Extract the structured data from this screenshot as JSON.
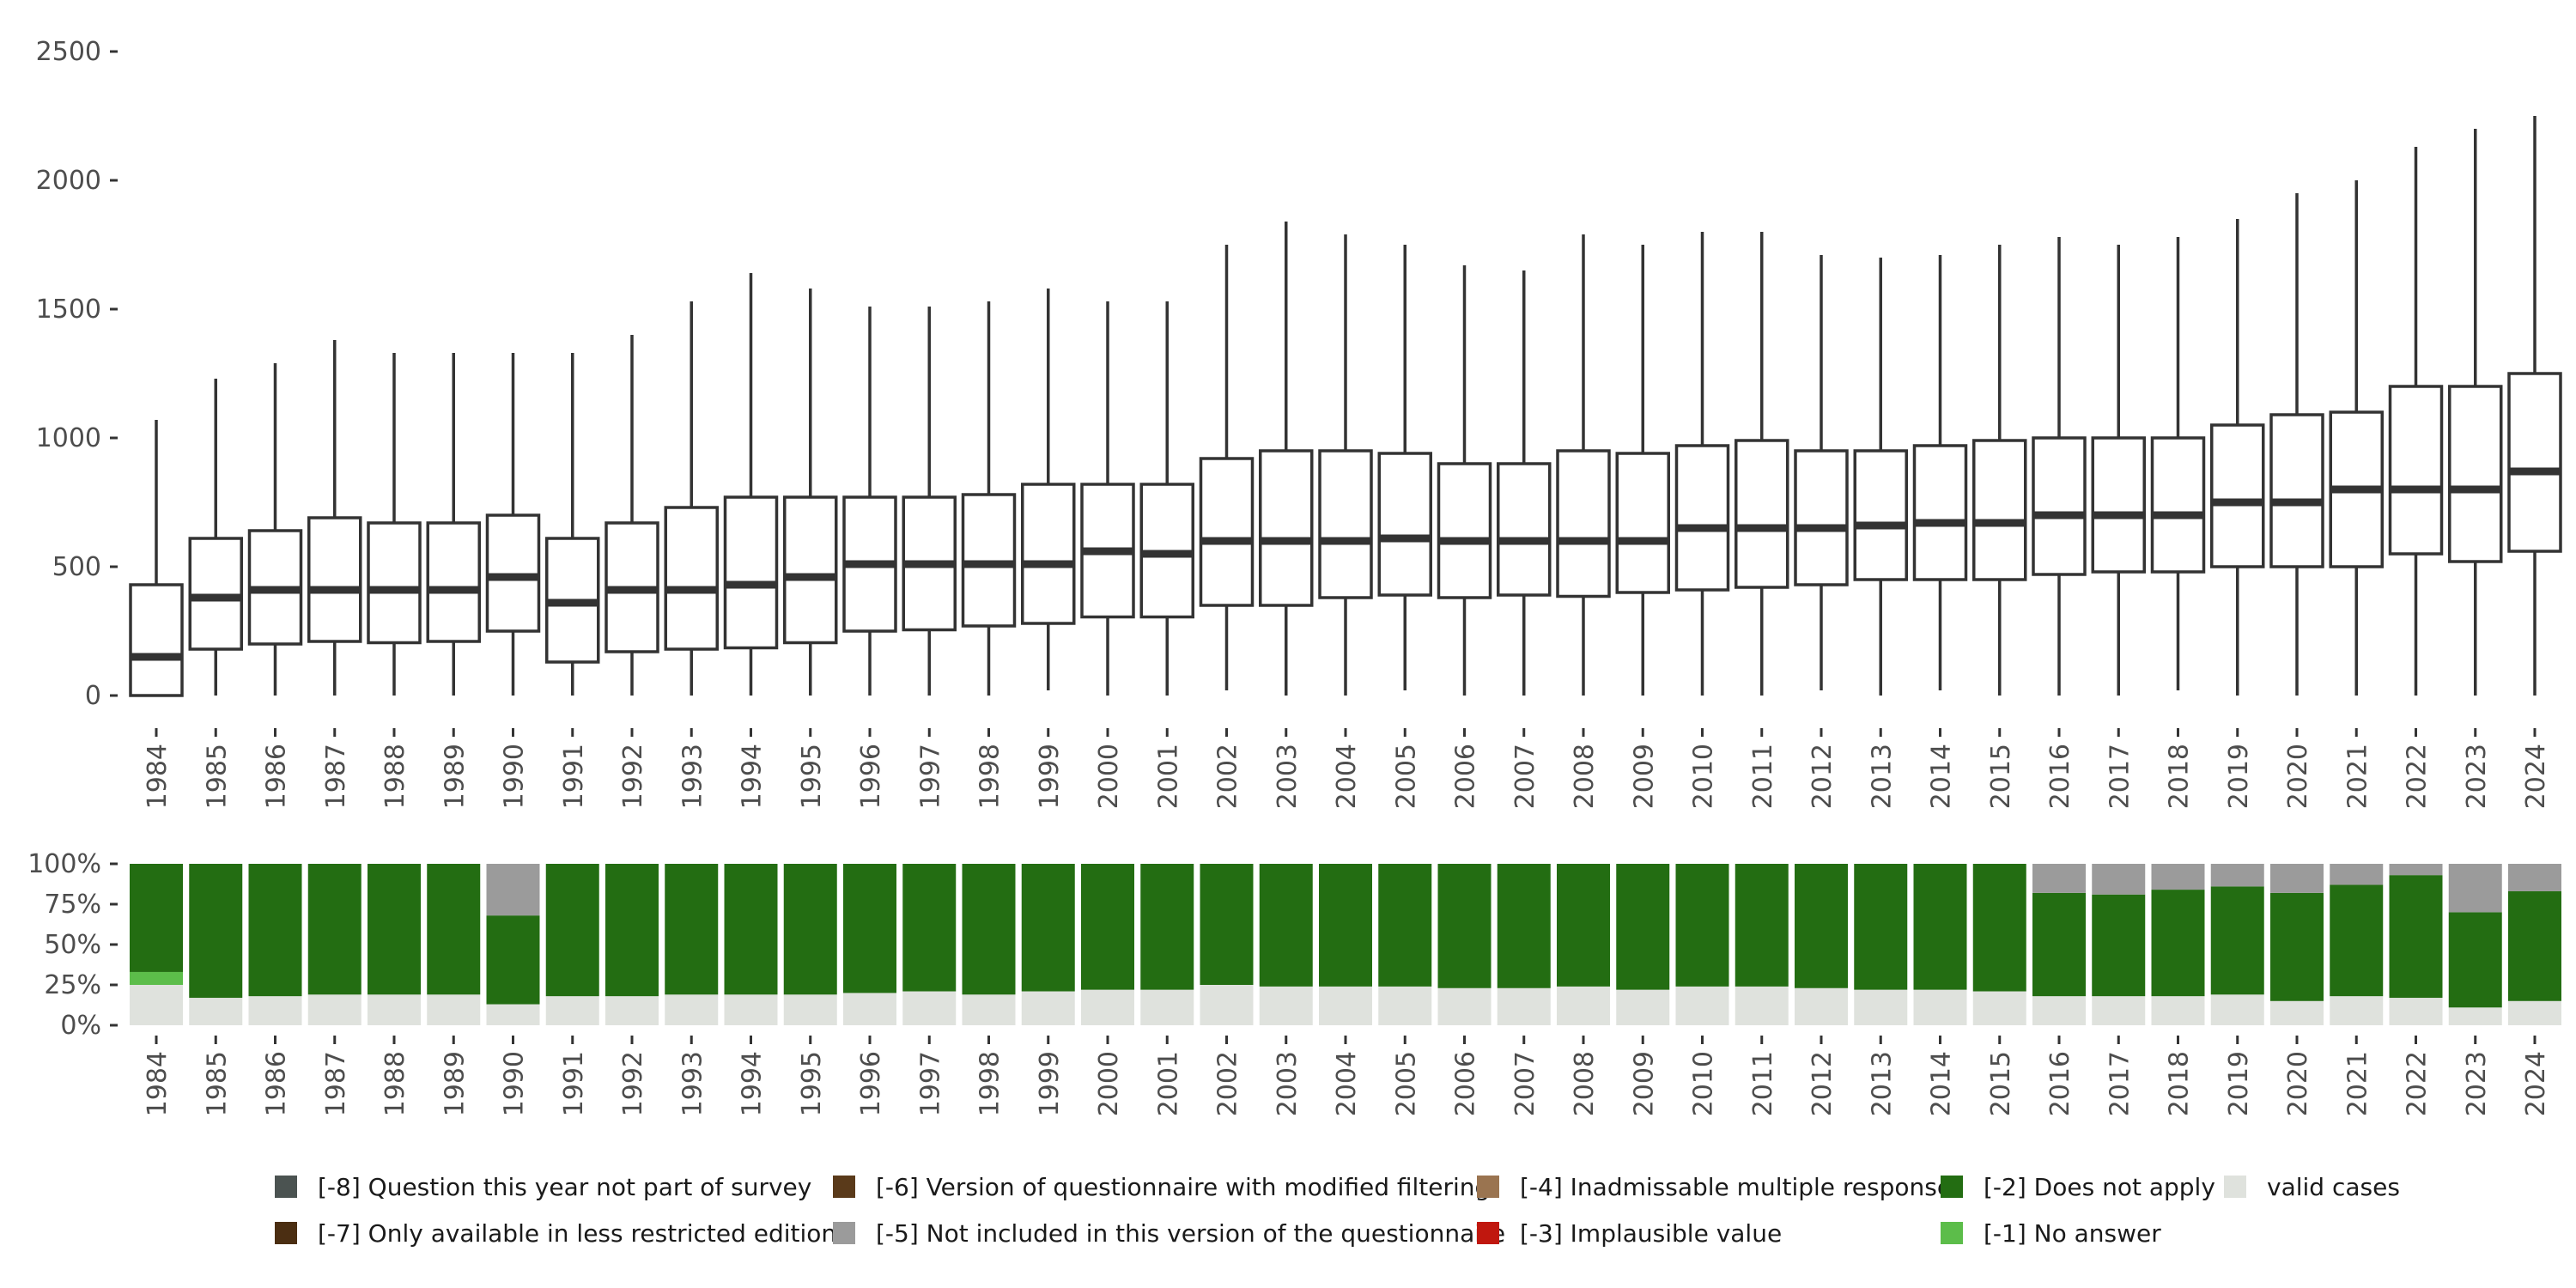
{
  "chart_data": [
    {
      "type": "boxplot",
      "title": "",
      "xlabel": "",
      "ylabel": "",
      "ylim": [
        0,
        2500
      ],
      "yticks": [
        "0",
        "500",
        "1000",
        "1500",
        "2000",
        "2500"
      ],
      "categories": [
        "1984",
        "1985",
        "1986",
        "1987",
        "1988",
        "1989",
        "1990",
        "1991",
        "1992",
        "1993",
        "1994",
        "1995",
        "1996",
        "1997",
        "1998",
        "1999",
        "2000",
        "2001",
        "2002",
        "2003",
        "2004",
        "2005",
        "2006",
        "2007",
        "2008",
        "2009",
        "2010",
        "2011",
        "2012",
        "2013",
        "2014",
        "2015",
        "2016",
        "2017",
        "2018",
        "2019",
        "2020",
        "2021",
        "2022",
        "2023",
        "2024"
      ],
      "boxes": [
        {
          "min": 0,
          "q1": 0,
          "median": 150,
          "q3": 430,
          "max": 1070
        },
        {
          "min": 0,
          "q1": 180,
          "median": 380,
          "q3": 610,
          "max": 1230
        },
        {
          "min": 0,
          "q1": 200,
          "median": 410,
          "q3": 640,
          "max": 1290
        },
        {
          "min": 0,
          "q1": 210,
          "median": 410,
          "q3": 690,
          "max": 1380
        },
        {
          "min": 0,
          "q1": 205,
          "median": 410,
          "q3": 670,
          "max": 1330
        },
        {
          "min": 0,
          "q1": 210,
          "median": 410,
          "q3": 670,
          "max": 1330
        },
        {
          "min": 0,
          "q1": 250,
          "median": 460,
          "q3": 700,
          "max": 1330
        },
        {
          "min": 0,
          "q1": 130,
          "median": 360,
          "q3": 610,
          "max": 1330
        },
        {
          "min": 0,
          "q1": 170,
          "median": 410,
          "q3": 670,
          "max": 1400
        },
        {
          "min": 0,
          "q1": 180,
          "median": 410,
          "q3": 730,
          "max": 1530
        },
        {
          "min": 0,
          "q1": 185,
          "median": 430,
          "q3": 770,
          "max": 1640
        },
        {
          "min": 0,
          "q1": 205,
          "median": 460,
          "q3": 770,
          "max": 1580
        },
        {
          "min": 0,
          "q1": 250,
          "median": 510,
          "q3": 770,
          "max": 1510
        },
        {
          "min": 0,
          "q1": 255,
          "median": 510,
          "q3": 770,
          "max": 1510
        },
        {
          "min": 0,
          "q1": 270,
          "median": 510,
          "q3": 780,
          "max": 1530
        },
        {
          "min": 20,
          "q1": 280,
          "median": 510,
          "q3": 820,
          "max": 1580
        },
        {
          "min": 0,
          "q1": 305,
          "median": 560,
          "q3": 820,
          "max": 1530
        },
        {
          "min": 0,
          "q1": 305,
          "median": 550,
          "q3": 820,
          "max": 1530
        },
        {
          "min": 20,
          "q1": 350,
          "median": 600,
          "q3": 920,
          "max": 1750
        },
        {
          "min": 0,
          "q1": 350,
          "median": 600,
          "q3": 950,
          "max": 1840
        },
        {
          "min": 0,
          "q1": 380,
          "median": 600,
          "q3": 950,
          "max": 1790
        },
        {
          "min": 20,
          "q1": 390,
          "median": 610,
          "q3": 940,
          "max": 1750
        },
        {
          "min": 0,
          "q1": 380,
          "median": 600,
          "q3": 900,
          "max": 1670
        },
        {
          "min": 0,
          "q1": 390,
          "median": 600,
          "q3": 900,
          "max": 1650
        },
        {
          "min": 0,
          "q1": 385,
          "median": 600,
          "q3": 950,
          "max": 1790
        },
        {
          "min": 0,
          "q1": 400,
          "median": 600,
          "q3": 940,
          "max": 1750
        },
        {
          "min": 0,
          "q1": 410,
          "median": 650,
          "q3": 970,
          "max": 1800
        },
        {
          "min": 0,
          "q1": 420,
          "median": 650,
          "q3": 990,
          "max": 1800
        },
        {
          "min": 20,
          "q1": 430,
          "median": 650,
          "q3": 950,
          "max": 1710
        },
        {
          "min": 0,
          "q1": 450,
          "median": 660,
          "q3": 950,
          "max": 1700
        },
        {
          "min": 20,
          "q1": 450,
          "median": 670,
          "q3": 970,
          "max": 1710
        },
        {
          "min": 0,
          "q1": 450,
          "median": 670,
          "q3": 990,
          "max": 1750
        },
        {
          "min": 0,
          "q1": 470,
          "median": 700,
          "q3": 1000,
          "max": 1780
        },
        {
          "min": 0,
          "q1": 480,
          "median": 700,
          "q3": 1000,
          "max": 1750
        },
        {
          "min": 20,
          "q1": 480,
          "median": 700,
          "q3": 1000,
          "max": 1780
        },
        {
          "min": 0,
          "q1": 500,
          "median": 750,
          "q3": 1050,
          "max": 1850
        },
        {
          "min": 0,
          "q1": 500,
          "median": 750,
          "q3": 1090,
          "max": 1950
        },
        {
          "min": 0,
          "q1": 500,
          "median": 800,
          "q3": 1100,
          "max": 2000
        },
        {
          "min": 0,
          "q1": 550,
          "median": 800,
          "q3": 1200,
          "max": 2130
        },
        {
          "min": 0,
          "q1": 520,
          "median": 800,
          "q3": 1200,
          "max": 2200
        },
        {
          "min": 0,
          "q1": 560,
          "median": 870,
          "q3": 1250,
          "max": 2250
        }
      ]
    },
    {
      "type": "stacked-bar",
      "title": "",
      "xlabel": "",
      "ylabel": "",
      "ylim": [
        0,
        100
      ],
      "yticks": [
        "0%",
        "25%",
        "50%",
        "75%",
        "100%"
      ],
      "categories": [
        "1984",
        "1985",
        "1986",
        "1987",
        "1988",
        "1989",
        "1990",
        "1991",
        "1992",
        "1993",
        "1994",
        "1995",
        "1996",
        "1997",
        "1998",
        "1999",
        "2000",
        "2001",
        "2002",
        "2003",
        "2004",
        "2005",
        "2006",
        "2007",
        "2008",
        "2009",
        "2010",
        "2011",
        "2012",
        "2013",
        "2014",
        "2015",
        "2016",
        "2017",
        "2018",
        "2019",
        "2020",
        "2021",
        "2022",
        "2023",
        "2024"
      ],
      "series": [
        {
          "name": "valid cases",
          "color": "#dfe2dd",
          "values": [
            25,
            17,
            18,
            19,
            19,
            19,
            13,
            18,
            18,
            19,
            19,
            19,
            20,
            21,
            19,
            21,
            22,
            22,
            25,
            24,
            24,
            24,
            23,
            23,
            24,
            22,
            24,
            24,
            23,
            22,
            22,
            21,
            18,
            18,
            18,
            19,
            15,
            18,
            17,
            11,
            15
          ]
        },
        {
          "name": "[-1] No answer",
          "color": "#5cbd4a",
          "values": [
            8,
            0,
            0,
            0,
            0,
            0,
            0,
            0,
            0,
            0,
            0,
            0,
            0,
            0,
            0,
            0,
            0,
            0,
            0,
            0,
            0,
            0,
            0,
            0,
            0,
            0,
            0,
            0,
            0,
            0,
            0,
            0,
            0,
            0,
            0,
            0,
            0,
            0,
            0,
            0,
            0
          ]
        },
        {
          "name": "[-2] Does not apply",
          "color": "#236d12",
          "values": [
            67,
            83,
            82,
            81,
            81,
            81,
            55,
            82,
            82,
            81,
            81,
            81,
            80,
            79,
            81,
            79,
            78,
            78,
            75,
            76,
            76,
            76,
            77,
            77,
            76,
            78,
            76,
            76,
            77,
            78,
            78,
            79,
            64,
            63,
            66,
            67,
            67,
            69,
            76,
            59,
            68
          ]
        },
        {
          "name": "[-5] Not included in this version of the questionnaire",
          "color": "#9b9b9b",
          "values": [
            0,
            0,
            0,
            0,
            0,
            0,
            32,
            0,
            0,
            0,
            0,
            0,
            0,
            0,
            0,
            0,
            0,
            0,
            0,
            0,
            0,
            0,
            0,
            0,
            0,
            0,
            0,
            0,
            0,
            0,
            0,
            0,
            18,
            19,
            16,
            14,
            18,
            13,
            7,
            30,
            17
          ]
        }
      ],
      "legend": [
        {
          "label": "[-8] Question this year not part of survey",
          "color": "#4b5351"
        },
        {
          "label": "[-7] Only available in less restricted edition",
          "color": "#4b2e12"
        },
        {
          "label": "[-6] Version of questionnaire with modified filtering",
          "color": "#5a3a1a"
        },
        {
          "label": "[-5] Not included in this version of the questionnaire",
          "color": "#9b9b9b"
        },
        {
          "label": "[-4] Inadmissable multiple response",
          "color": "#9a7450"
        },
        {
          "label": "[-3] Implausible value",
          "color": "#c0170e"
        },
        {
          "label": "[-2] Does not apply",
          "color": "#236d12"
        },
        {
          "label": "[-1] No answer",
          "color": "#5cbd4a"
        },
        {
          "label": "valid cases",
          "color": "#dfe2dd"
        }
      ]
    }
  ]
}
